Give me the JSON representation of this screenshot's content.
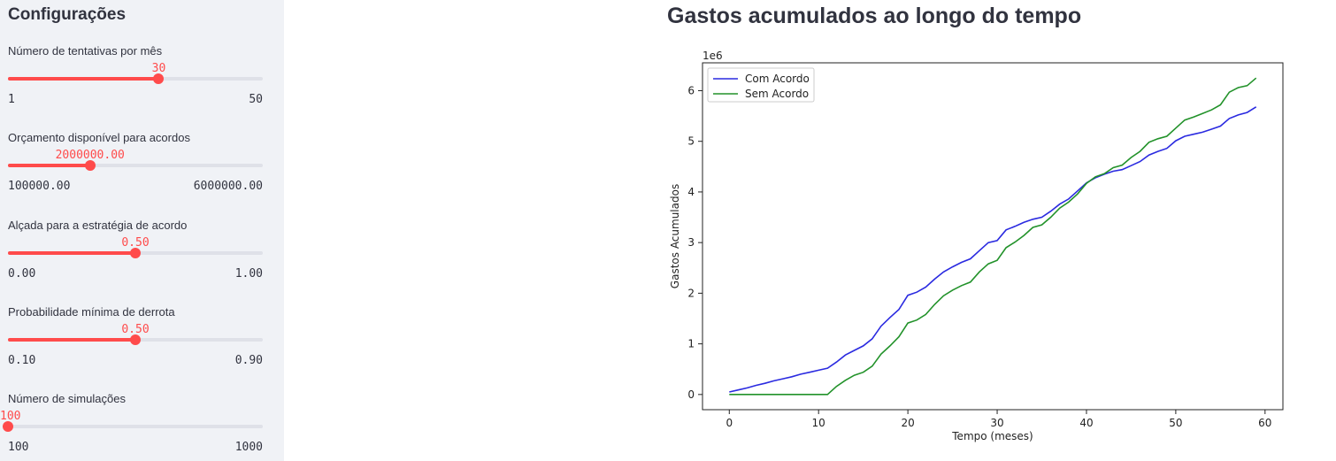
{
  "sidebar": {
    "title": "Configurações",
    "sliders": [
      {
        "label": "Número de tentativas por mês",
        "value": "30",
        "min_label": "1",
        "max_label": "50",
        "fraction": 0.592
      },
      {
        "label": "Orçamento disponível para acordos",
        "value": "2000000.00",
        "min_label": "100000.00",
        "max_label": "6000000.00",
        "fraction": 0.322
      },
      {
        "label": "Alçada para a estratégia de acordo",
        "value": "0.50",
        "min_label": "0.00",
        "max_label": "1.00",
        "fraction": 0.5
      },
      {
        "label": "Probabilidade mínima de derrota",
        "value": "0.50",
        "min_label": "0.10",
        "max_label": "0.90",
        "fraction": 0.5
      },
      {
        "label": "Número de simulações",
        "value": "100",
        "min_label": "100",
        "max_label": "1000",
        "fraction": 0.0
      }
    ]
  },
  "main": {
    "title": "Gastos acumulados ao longo do tempo"
  },
  "chart_data": {
    "type": "line",
    "title": "",
    "xlabel": "Tempo (meses)",
    "ylabel": "Gastos Acumulados",
    "y_offset_label": "1e6",
    "xlim": [
      -3,
      62
    ],
    "ylim": [
      -0.3,
      6.55
    ],
    "xticks": [
      0,
      10,
      20,
      30,
      40,
      50,
      60
    ],
    "yticks": [
      0,
      1,
      2,
      3,
      4,
      5,
      6
    ],
    "legend_position": "upper-left",
    "grid": false,
    "series": [
      {
        "name": "Com Acordo",
        "color": "#2a2ae0",
        "x": [
          0,
          1,
          2,
          3,
          4,
          5,
          6,
          7,
          8,
          9,
          10,
          11,
          12,
          13,
          14,
          15,
          16,
          17,
          18,
          19,
          20,
          21,
          22,
          23,
          24,
          25,
          26,
          27,
          28,
          29,
          30,
          31,
          32,
          33,
          34,
          35,
          36,
          37,
          38,
          39,
          40,
          41,
          42,
          43,
          44,
          45,
          46,
          47,
          48,
          49,
          50,
          51,
          52,
          53,
          54,
          55,
          56,
          57,
          58,
          59
        ],
        "y": [
          0.05,
          0.09,
          0.13,
          0.18,
          0.22,
          0.27,
          0.31,
          0.35,
          0.4,
          0.44,
          0.48,
          0.52,
          0.64,
          0.78,
          0.87,
          0.96,
          1.1,
          1.35,
          1.52,
          1.68,
          1.96,
          2.02,
          2.12,
          2.28,
          2.42,
          2.52,
          2.61,
          2.68,
          2.84,
          3.0,
          3.04,
          3.25,
          3.32,
          3.4,
          3.46,
          3.5,
          3.62,
          3.76,
          3.86,
          4.02,
          4.18,
          4.28,
          4.35,
          4.41,
          4.44,
          4.52,
          4.6,
          4.73,
          4.8,
          4.86,
          5.01,
          5.1,
          5.14,
          5.18,
          5.24,
          5.3,
          5.45,
          5.52,
          5.57,
          5.68
        ]
      },
      {
        "name": "Sem Acordo",
        "color": "#22922a",
        "x": [
          0,
          1,
          2,
          3,
          4,
          5,
          6,
          7,
          8,
          9,
          10,
          11,
          12,
          13,
          14,
          15,
          16,
          17,
          18,
          19,
          20,
          21,
          22,
          23,
          24,
          25,
          26,
          27,
          28,
          29,
          30,
          31,
          32,
          33,
          34,
          35,
          36,
          37,
          38,
          39,
          40,
          41,
          42,
          43,
          44,
          45,
          46,
          47,
          48,
          49,
          50,
          51,
          52,
          53,
          54,
          55,
          56,
          57,
          58,
          59
        ],
        "y": [
          0,
          0,
          0,
          0,
          0,
          0,
          0,
          0,
          0,
          0,
          0,
          0,
          0.16,
          0.28,
          0.38,
          0.44,
          0.56,
          0.8,
          0.96,
          1.14,
          1.41,
          1.47,
          1.58,
          1.78,
          1.95,
          2.06,
          2.15,
          2.22,
          2.42,
          2.58,
          2.65,
          2.9,
          3.01,
          3.14,
          3.3,
          3.35,
          3.5,
          3.68,
          3.8,
          3.96,
          4.17,
          4.3,
          4.36,
          4.48,
          4.53,
          4.68,
          4.8,
          4.98,
          5.05,
          5.1,
          5.26,
          5.42,
          5.48,
          5.55,
          5.62,
          5.72,
          5.97,
          6.06,
          6.1,
          6.25
        ]
      }
    ]
  }
}
